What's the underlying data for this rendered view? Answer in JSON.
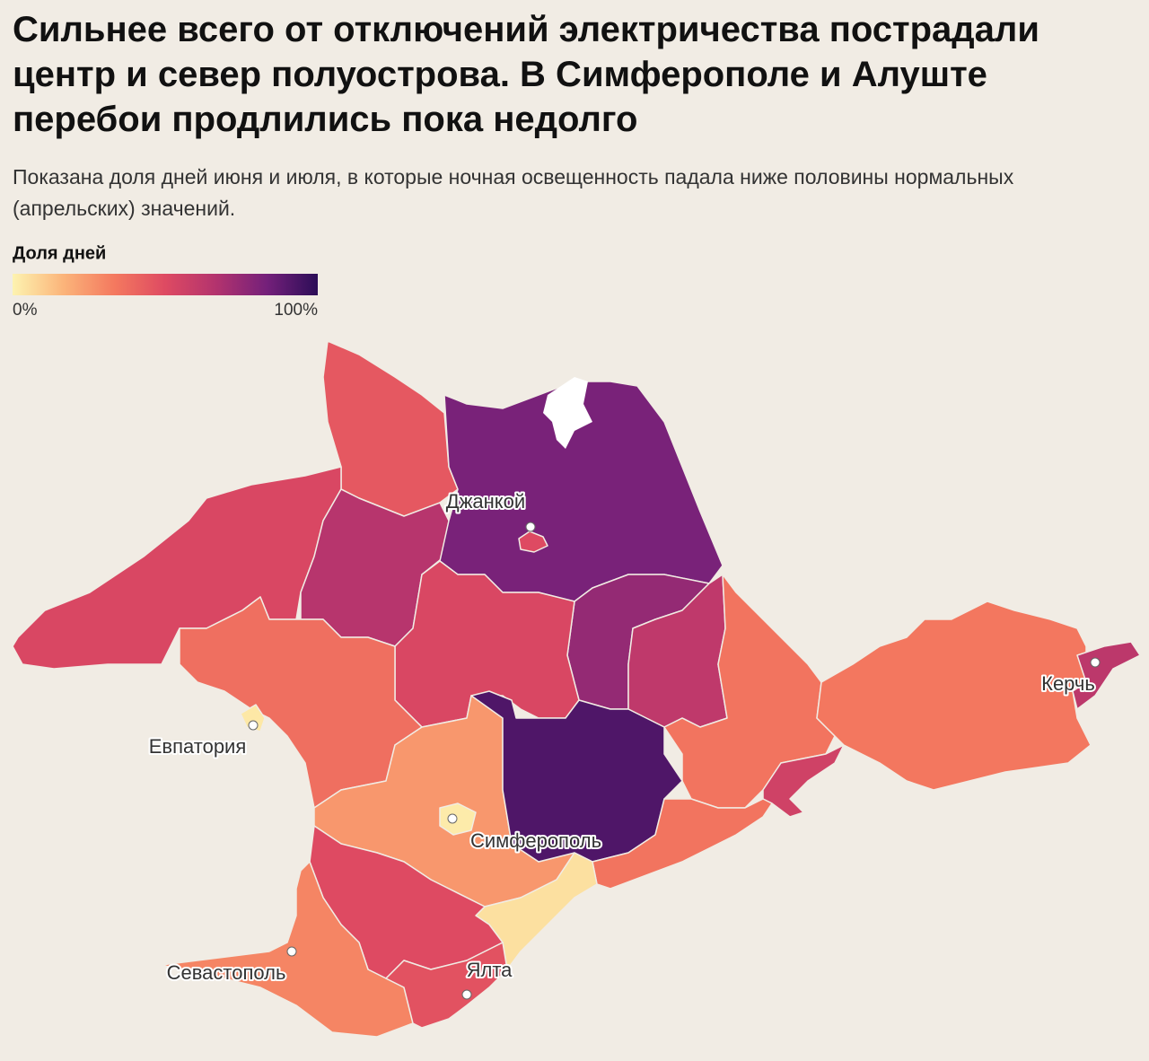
{
  "header": {
    "title": "Сильнее всего от отключений электричества пострадали центр и север полуострова. В Симферополе и Алуште перебои продлились пока недолго",
    "subtitle": "Показана доля дней июня и июля, в которые ночная освещенность падала ниже половины нормальных (апрельских) значений."
  },
  "map": {
    "legend": {
      "title": "Доля дней",
      "ticks": [
        {
          "value": 0,
          "label": "0%"
        },
        {
          "value": 100,
          "label": "100%"
        }
      ],
      "colors": [
        "#fdf3b0",
        "#fbb47a",
        "#f4795f",
        "#de4a62",
        "#b3336e",
        "#74207a",
        "#2c0d57"
      ]
    },
    "regions": {
      "values": [
        45,
        52,
        65,
        82,
        50,
        75,
        62,
        52,
        35,
        37,
        3,
        25,
        2,
        92,
        56,
        34,
        63,
        35,
        5,
        50,
        30,
        47
      ]
    },
    "cities": [
      {
        "label": "Джанкой"
      },
      {
        "label": "Евпатория"
      },
      {
        "label": "Симферополь"
      },
      {
        "label": "Севастополь"
      },
      {
        "label": "Ялта"
      },
      {
        "label": "Керчь"
      }
    ]
  }
}
